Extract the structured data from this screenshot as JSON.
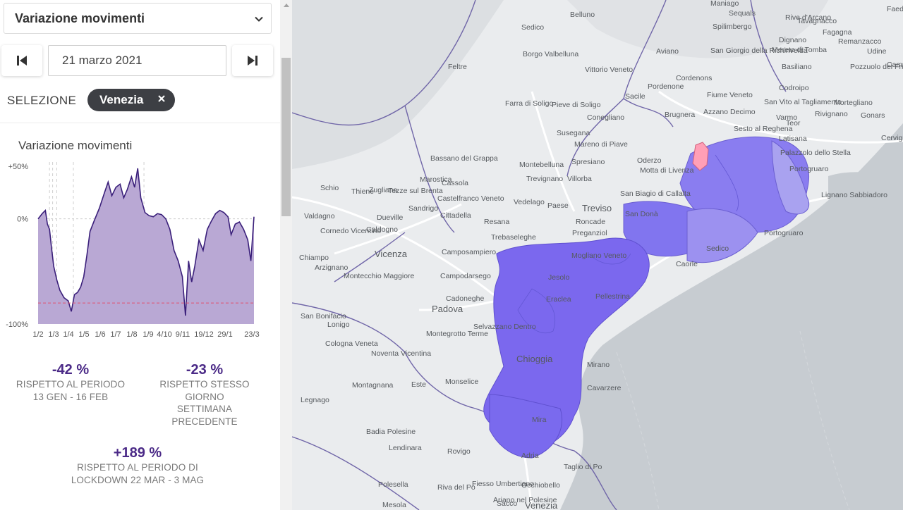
{
  "header": {
    "select_label": "Variazione movimenti",
    "date_value": "21 marzo 2021",
    "selection_label": "SELEZIONE",
    "chip_label": "Venezia"
  },
  "chart_data": {
    "type": "area",
    "title": "Variazione movimenti",
    "y_ticks": [
      "+50%",
      "0%",
      "-100%"
    ],
    "ylim": [
      -100,
      50
    ],
    "x_tick_labels": [
      "1/2",
      "1/3",
      "1/4",
      "1/5",
      "1/6",
      "1/7",
      "1/8",
      "1/9",
      "4/10",
      "9/11",
      "19/12",
      "29/1",
      "23/3"
    ],
    "x_range_days": [
      0,
      416
    ],
    "reference_line_y": -80,
    "series": [
      {
        "values": [
          {
            "day": 0,
            "y": 0
          },
          {
            "day": 8,
            "y": 5
          },
          {
            "day": 14,
            "y": 8
          },
          {
            "day": 18,
            "y": -5
          },
          {
            "day": 22,
            "y": -10
          },
          {
            "day": 26,
            "y": -28
          },
          {
            "day": 30,
            "y": -45
          },
          {
            "day": 36,
            "y": -58
          },
          {
            "day": 42,
            "y": -68
          },
          {
            "day": 50,
            "y": -75
          },
          {
            "day": 58,
            "y": -78
          },
          {
            "day": 64,
            "y": -88
          },
          {
            "day": 70,
            "y": -72
          },
          {
            "day": 76,
            "y": -70
          },
          {
            "day": 82,
            "y": -65
          },
          {
            "day": 88,
            "y": -55
          },
          {
            "day": 94,
            "y": -35
          },
          {
            "day": 100,
            "y": -12
          },
          {
            "day": 108,
            "y": -2
          },
          {
            "day": 118,
            "y": 10
          },
          {
            "day": 128,
            "y": 25
          },
          {
            "day": 135,
            "y": 35
          },
          {
            "day": 142,
            "y": 22
          },
          {
            "day": 150,
            "y": 30
          },
          {
            "day": 158,
            "y": 33
          },
          {
            "day": 165,
            "y": 20
          },
          {
            "day": 172,
            "y": 28
          },
          {
            "day": 180,
            "y": 40
          },
          {
            "day": 186,
            "y": 30
          },
          {
            "day": 192,
            "y": 48
          },
          {
            "day": 198,
            "y": 20
          },
          {
            "day": 206,
            "y": 6
          },
          {
            "day": 214,
            "y": 3
          },
          {
            "day": 222,
            "y": 2
          },
          {
            "day": 230,
            "y": 5
          },
          {
            "day": 238,
            "y": 4
          },
          {
            "day": 246,
            "y": 0
          },
          {
            "day": 254,
            "y": -10
          },
          {
            "day": 262,
            "y": -30
          },
          {
            "day": 270,
            "y": -40
          },
          {
            "day": 278,
            "y": -55
          },
          {
            "day": 284,
            "y": -92
          },
          {
            "day": 290,
            "y": -40
          },
          {
            "day": 296,
            "y": -60
          },
          {
            "day": 302,
            "y": -45
          },
          {
            "day": 310,
            "y": -20
          },
          {
            "day": 318,
            "y": -30
          },
          {
            "day": 326,
            "y": -10
          },
          {
            "day": 334,
            "y": -2
          },
          {
            "day": 342,
            "y": 5
          },
          {
            "day": 350,
            "y": 8
          },
          {
            "day": 358,
            "y": 6
          },
          {
            "day": 366,
            "y": 2
          },
          {
            "day": 372,
            "y": -15
          },
          {
            "day": 380,
            "y": -5
          },
          {
            "day": 388,
            "y": -3
          },
          {
            "day": 396,
            "y": -10
          },
          {
            "day": 404,
            "y": -20
          },
          {
            "day": 410,
            "y": -40
          },
          {
            "day": 416,
            "y": 2
          }
        ]
      }
    ]
  },
  "stats": [
    {
      "value": "-42 %",
      "lines": [
        "RISPETTO AL PERIODO",
        "13 GEN - 16 FEB"
      ]
    },
    {
      "value": "-23 %",
      "lines": [
        "RISPETTO STESSO",
        "GIORNO",
        "SETTIMANA",
        "PRECEDENTE"
      ]
    },
    {
      "value": "+189 %",
      "lines": [
        "RISPETTO AL PERIODO DI",
        "LOCKDOWN 22 MAR - 3 MAG"
      ]
    }
  ],
  "map": {
    "selected_color": "#ff9fb6",
    "region_color": "#7b68ee",
    "labels": [
      {
        "name": "Belluno"
      },
      {
        "name": "Sedico"
      },
      {
        "name": "Feltre"
      },
      {
        "name": "Borgo Valbelluna"
      },
      {
        "name": "Vittorio Veneto"
      },
      {
        "name": "Farra di Soligo"
      },
      {
        "name": "Pieve di Soligo"
      },
      {
        "name": "Conegliano"
      },
      {
        "name": "Susegana"
      },
      {
        "name": "Mareno di Piave"
      },
      {
        "name": "Pordenone"
      },
      {
        "name": "Sacile"
      },
      {
        "name": "Aviano"
      },
      {
        "name": "Brugnera"
      },
      {
        "name": "Cordenons"
      },
      {
        "name": "Fiume Veneto"
      },
      {
        "name": "Azzano Decimo"
      },
      {
        "name": "San Vito al Tagliamento"
      },
      {
        "name": "Codroipo"
      },
      {
        "name": "Varmo"
      },
      {
        "name": "Teor"
      },
      {
        "name": "Rivignano"
      },
      {
        "name": "Sesto al Reghena"
      },
      {
        "name": "Maniago"
      },
      {
        "name": "Sequals"
      },
      {
        "name": "Spilimbergo"
      },
      {
        "name": "San Giorgio della Richinvelda"
      },
      {
        "name": "Dignano"
      },
      {
        "name": "Mereto di Tomba"
      },
      {
        "name": "Basiliano"
      },
      {
        "name": "Rive d'Arcano"
      },
      {
        "name": "Tavagnacco"
      },
      {
        "name": "Fagagna"
      },
      {
        "name": "Remanzacco"
      },
      {
        "name": "Udine"
      },
      {
        "name": "Campoformido"
      },
      {
        "name": "Pozzuolo del Friuli"
      },
      {
        "name": "Mortegliano"
      },
      {
        "name": "Gonars"
      },
      {
        "name": "Cervignano del Friuli"
      },
      {
        "name": "Lignano Sabbiadoro"
      },
      {
        "name": "Latisana"
      },
      {
        "name": "Palazzolo dello Stella"
      },
      {
        "name": "Portogruaro"
      },
      {
        "name": "Faedis"
      },
      {
        "name": "Bassano del Grappa"
      },
      {
        "name": "Schio"
      },
      {
        "name": "Thiene"
      },
      {
        "name": "Zugliano"
      },
      {
        "name": "Marostica"
      },
      {
        "name": "Cassola"
      },
      {
        "name": "Tezze sul Brenta"
      },
      {
        "name": "Castelfranco Veneto"
      },
      {
        "name": "Sandrigo"
      },
      {
        "name": "Dueville"
      },
      {
        "name": "Cittadella"
      },
      {
        "name": "Montebelluna"
      },
      {
        "name": "Trevignano"
      },
      {
        "name": "Villorba"
      },
      {
        "name": "Spresiano"
      },
      {
        "name": "Vedelago"
      },
      {
        "name": "Paese"
      },
      {
        "name": "Treviso"
      },
      {
        "name": "Oderzo"
      },
      {
        "name": "Motta di Livenza"
      },
      {
        "name": "San Biagio di Callalta"
      },
      {
        "name": "San Donà"
      },
      {
        "name": "Roncade"
      },
      {
        "name": "Preganziol"
      },
      {
        "name": "Resana"
      },
      {
        "name": "Trebaseleghe"
      },
      {
        "name": "Mogliano Veneto"
      },
      {
        "name": "Valdagno"
      },
      {
        "name": "Cornedo Vicentino"
      },
      {
        "name": "Caldogno"
      },
      {
        "name": "Chiampo"
      },
      {
        "name": "Arzignano"
      },
      {
        "name": "Montecchio Maggiore"
      },
      {
        "name": "Vicenza"
      },
      {
        "name": "Camposampiero"
      },
      {
        "name": "Campodarsego"
      },
      {
        "name": "Cadoneghe"
      },
      {
        "name": "Padova"
      },
      {
        "name": "Selvazzano Dentro"
      },
      {
        "name": "Montegrotto Terme"
      },
      {
        "name": "San Bonifacio"
      },
      {
        "name": "Lonigo"
      },
      {
        "name": "Cologna Veneta"
      },
      {
        "name": "Noventa Vicentina"
      },
      {
        "name": "Montagnana"
      },
      {
        "name": "Este"
      },
      {
        "name": "Monselice"
      },
      {
        "name": "Legnago"
      },
      {
        "name": "Badia Polesine"
      },
      {
        "name": "Lendinara"
      },
      {
        "name": "Rovigo"
      },
      {
        "name": "Adria"
      },
      {
        "name": "Taglio di Po"
      },
      {
        "name": "Fiesso Umbertiano"
      },
      {
        "name": "Polesella"
      },
      {
        "name": "Riva del Po"
      },
      {
        "name": "Occhiobello"
      },
      {
        "name": "Ariano nel Polesine"
      },
      {
        "name": "Mesola"
      },
      {
        "name": "Sacco"
      },
      {
        "name": "Venezia"
      },
      {
        "name": "Chioggia"
      },
      {
        "name": "Pellestrina"
      },
      {
        "name": "Cavarzere"
      },
      {
        "name": "Mirano"
      },
      {
        "name": "Mira"
      },
      {
        "name": "Jesolo"
      },
      {
        "name": "Eraclea"
      },
      {
        "name": "Caorle"
      },
      {
        "name": "Sedico"
      },
      {
        "name": "Portogruaro"
      }
    ]
  }
}
